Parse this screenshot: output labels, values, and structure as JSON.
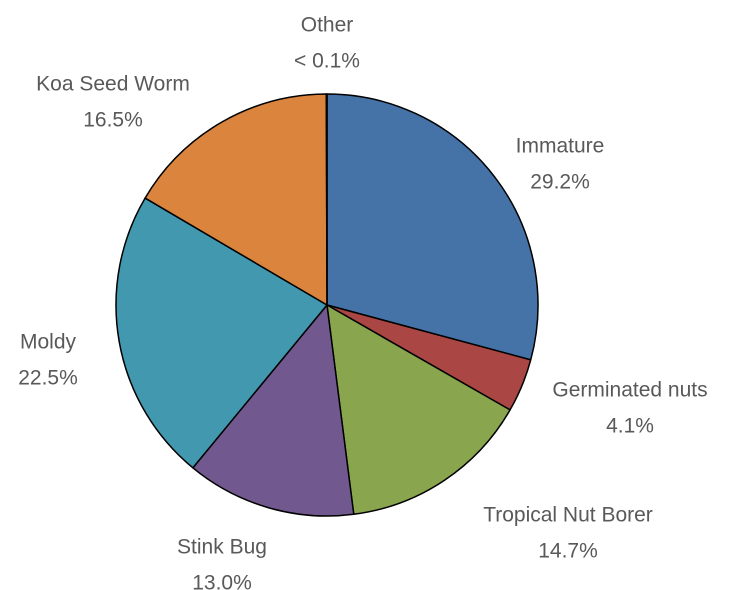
{
  "chart_data": {
    "type": "pie",
    "categories": [
      "Immature",
      "Germinated nuts",
      "Tropical Nut Borer",
      "Stink Bug",
      "Moldy",
      "Koa Seed Worm",
      "Other"
    ],
    "values": [
      29.2,
      4.1,
      14.7,
      13.0,
      22.5,
      16.5,
      0.05
    ],
    "value_labels": [
      "29.2%",
      "4.1%",
      "14.7%",
      "13.0%",
      "22.5%",
      "16.5%",
      "< 0.1%"
    ],
    "colors": [
      "#4572a7",
      "#aa4643",
      "#89a54e",
      "#71588f",
      "#4198af",
      "#db843d",
      "#93a9cf"
    ]
  }
}
